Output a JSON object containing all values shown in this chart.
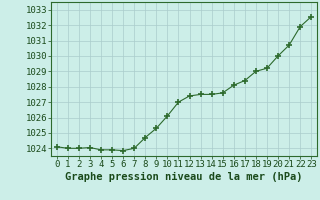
{
  "x": [
    0,
    1,
    2,
    3,
    4,
    5,
    6,
    7,
    8,
    9,
    10,
    11,
    12,
    13,
    14,
    15,
    16,
    17,
    18,
    19,
    20,
    21,
    22,
    23
  ],
  "y": [
    1024.1,
    1024.0,
    1024.0,
    1024.05,
    1023.9,
    1023.9,
    1023.85,
    1024.0,
    1024.7,
    1025.3,
    1026.1,
    1027.0,
    1027.4,
    1027.5,
    1027.5,
    1027.6,
    1028.1,
    1028.4,
    1029.0,
    1029.2,
    1030.0,
    1030.7,
    1031.9,
    1032.55
  ],
  "ylim": [
    1023.5,
    1033.5
  ],
  "yticks": [
    1024,
    1025,
    1026,
    1027,
    1028,
    1029,
    1030,
    1031,
    1032,
    1033
  ],
  "xticks": [
    0,
    1,
    2,
    3,
    4,
    5,
    6,
    7,
    8,
    9,
    10,
    11,
    12,
    13,
    14,
    15,
    16,
    17,
    18,
    19,
    20,
    21,
    22,
    23
  ],
  "xlabel": "Graphe pression niveau de la mer (hPa)",
  "line_color": "#2d6a2d",
  "marker_color": "#2d6a2d",
  "bg_color": "#cceee8",
  "grid_color": "#aacccc",
  "text_color": "#1a4a1a",
  "xlabel_fontsize": 7.5,
  "tick_fontsize": 6.5
}
